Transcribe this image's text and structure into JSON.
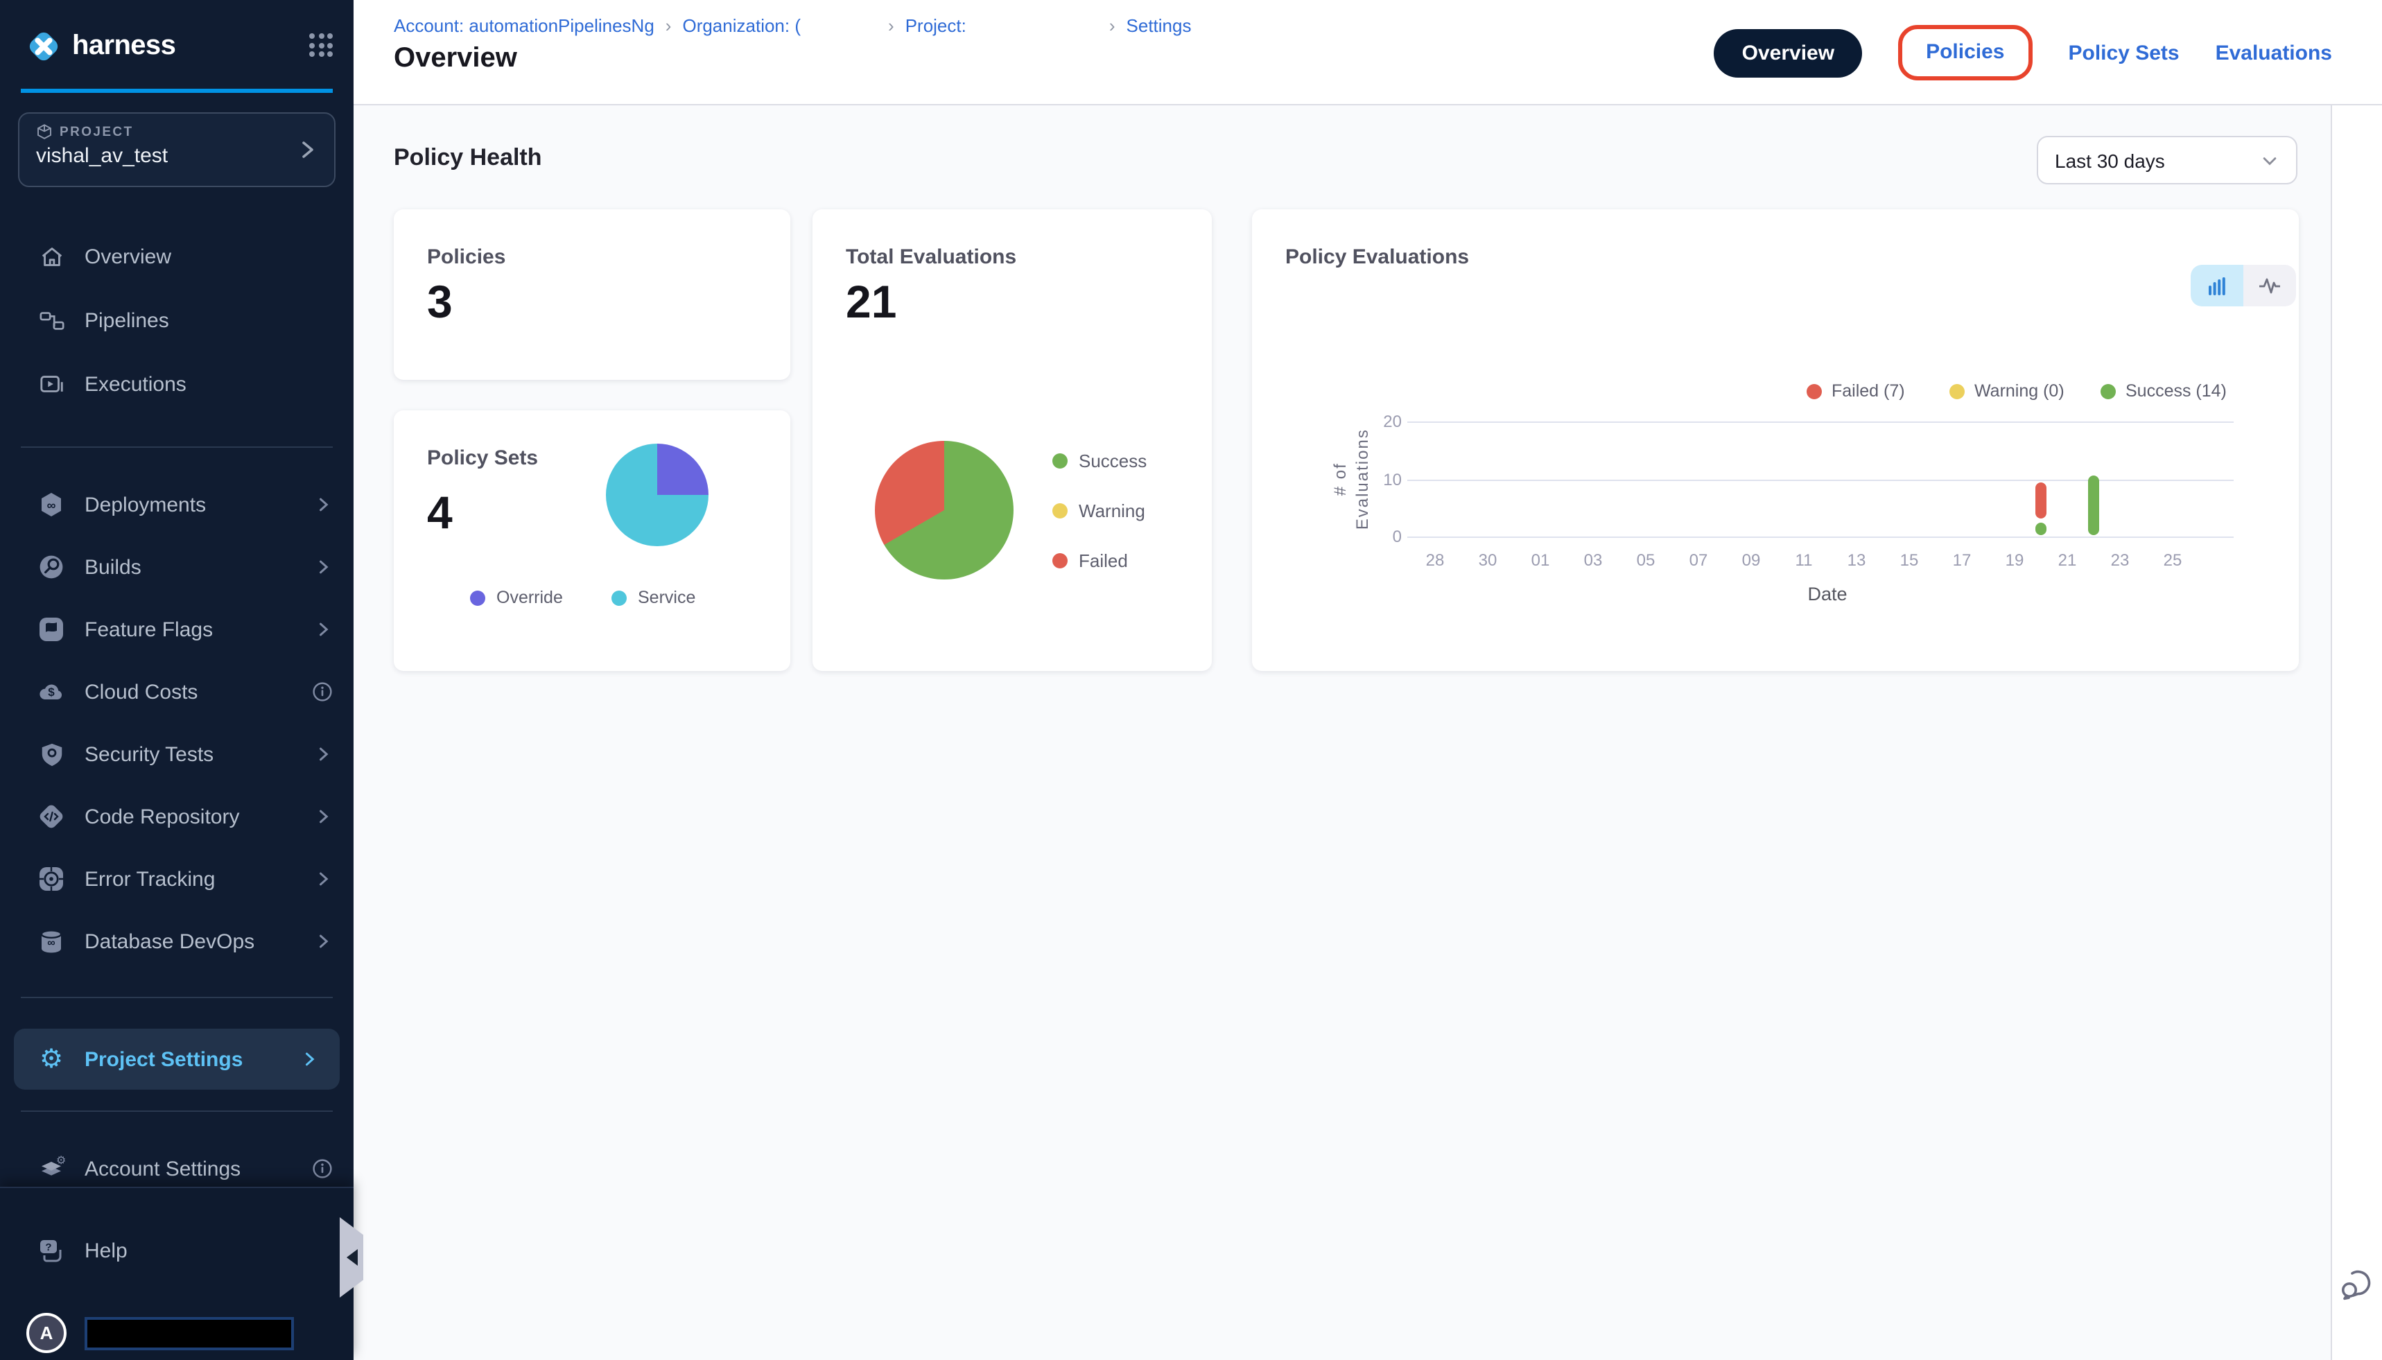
{
  "colors": {
    "accent_blue": "#0092e4",
    "link_blue": "#2f6bd6",
    "annotation_red": "#e8432c",
    "success": "#72b253",
    "warning": "#ecd05c",
    "failed": "#e05e50",
    "override": "#6965df",
    "service": "#4fc6dc",
    "sidebar_bg": "#101c31",
    "active_nav_text": "#5ec2f5"
  },
  "sidebar": {
    "logo_text": "harness",
    "project": {
      "label": "PROJECT",
      "name": "vishal_av_test"
    },
    "nav_top": [
      {
        "label": "Overview"
      },
      {
        "label": "Pipelines"
      },
      {
        "label": "Executions"
      }
    ],
    "modules": [
      {
        "label": "Deployments"
      },
      {
        "label": "Builds"
      },
      {
        "label": "Feature Flags"
      },
      {
        "label": "Cloud Costs"
      },
      {
        "label": "Security Tests"
      },
      {
        "label": "Code Repository"
      },
      {
        "label": "Error Tracking"
      },
      {
        "label": "Database DevOps"
      }
    ],
    "project_settings": {
      "label": "Project Settings"
    },
    "account_settings": {
      "label": "Account Settings"
    },
    "help": {
      "label": "Help"
    },
    "user": {
      "initial": "A"
    }
  },
  "header": {
    "breadcrumb": [
      {
        "label": "Account: automationPipelinesNg"
      },
      {
        "label": "Organization: ("
      },
      {
        "label": "Project:"
      },
      {
        "label": "Settings"
      }
    ],
    "title": "Overview",
    "tabs": [
      {
        "label": "Overview",
        "active": true
      },
      {
        "label": "Policies",
        "annotated": true
      },
      {
        "label": "Policy Sets"
      },
      {
        "label": "Evaluations"
      }
    ]
  },
  "main": {
    "section_title": "Policy Health",
    "date_filter": {
      "value": "Last 30 days"
    },
    "cards": {
      "policies": {
        "title": "Policies",
        "value": "3"
      },
      "total_evaluations": {
        "title": "Total Evaluations",
        "value": "21",
        "legend": [
          {
            "label": "Success"
          },
          {
            "label": "Warning"
          },
          {
            "label": "Failed"
          }
        ]
      },
      "policy_sets": {
        "title": "Policy Sets",
        "value": "4",
        "legend": [
          {
            "label": "Override"
          },
          {
            "label": "Service"
          }
        ]
      },
      "policy_evaluations": {
        "title": "Policy Evaluations",
        "legend": [
          {
            "label": "Failed (7)"
          },
          {
            "label": "Warning (0)"
          },
          {
            "label": "Success (14)"
          }
        ]
      }
    }
  },
  "chart_data": [
    {
      "type": "pie",
      "title": "Total Evaluations by status",
      "slices": [
        {
          "label": "Success",
          "value": 14,
          "color": "#72b253"
        },
        {
          "label": "Warning",
          "value": 0,
          "color": "#ecd05c"
        },
        {
          "label": "Failed",
          "value": 7,
          "color": "#e05e50"
        }
      ]
    },
    {
      "type": "pie",
      "title": "Policy Sets by type",
      "slices": [
        {
          "label": "Override",
          "value": 1,
          "color": "#6965df"
        },
        {
          "label": "Service",
          "value": 3,
          "color": "#4fc6dc"
        }
      ]
    },
    {
      "type": "bar",
      "title": "Policy Evaluations",
      "xlabel": "Date",
      "ylabel": "# of Evaluations",
      "ylim": [
        0,
        20
      ],
      "yticks": [
        0,
        10,
        20
      ],
      "categories": [
        "28",
        "30",
        "01",
        "03",
        "05",
        "07",
        "09",
        "11",
        "13",
        "15",
        "17",
        "19",
        "21",
        "23",
        "25"
      ],
      "legend_position": "top-right",
      "grid": true,
      "bars": [
        {
          "date": "20",
          "status": "Success",
          "value": 2,
          "slot": 11.5,
          "from": 0.2,
          "to": 2.4,
          "color": "#72b253"
        },
        {
          "date": "20",
          "status": "Failed",
          "value": 7,
          "slot": 11.5,
          "from": 3.2,
          "to": 9.5,
          "color": "#e05e50"
        },
        {
          "date": "22",
          "status": "Success",
          "value": 12,
          "slot": 12.5,
          "from": 0.2,
          "to": 10.6,
          "color": "#72b253"
        }
      ]
    }
  ]
}
